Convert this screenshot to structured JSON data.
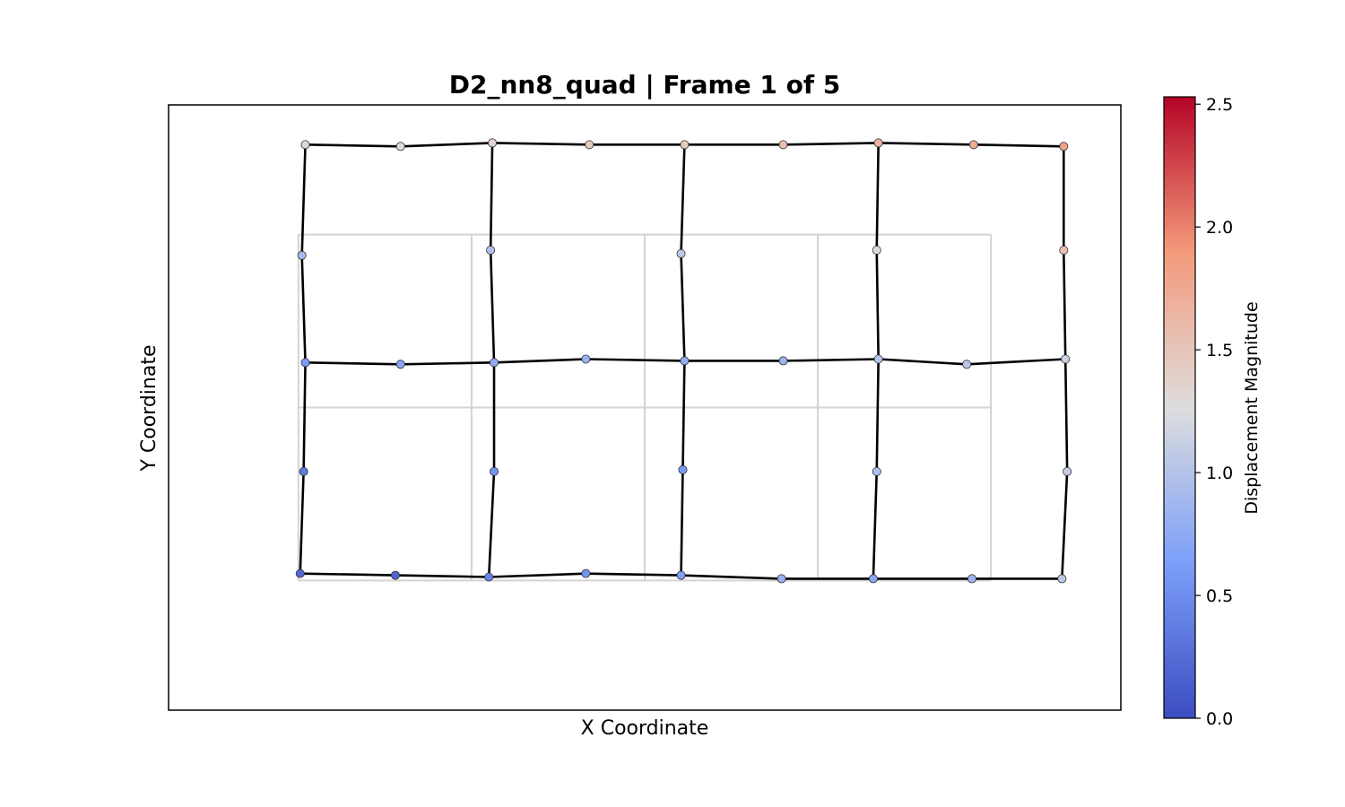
{
  "chart_data": {
    "type": "scatter",
    "title": "D2_nn8_quad  |  Frame 1 of 5",
    "xlabel": "X Coordinate",
    "ylabel": "Y Coordinate",
    "xlim": [
      -0.75,
      4.75
    ],
    "ylim": [
      -0.75,
      2.75
    ],
    "grid": false,
    "undeformed_mesh": {
      "color": "#d3d3d3",
      "segments": [
        [
          [
            0,
            0
          ],
          [
            4,
            0
          ]
        ],
        [
          [
            0,
            1
          ],
          [
            4,
            1
          ]
        ],
        [
          [
            0,
            2
          ],
          [
            4,
            2
          ]
        ],
        [
          [
            0,
            0
          ],
          [
            0,
            2
          ]
        ],
        [
          [
            1,
            0
          ],
          [
            1,
            2
          ]
        ],
        [
          [
            2,
            0
          ],
          [
            2,
            2
          ]
        ],
        [
          [
            3,
            0
          ],
          [
            3,
            2
          ]
        ],
        [
          [
            4,
            0
          ],
          [
            4,
            2
          ]
        ]
      ]
    },
    "nodes": [
      {
        "x": 0.01,
        "y": 0.04,
        "d": 0.22
      },
      {
        "x": 0.56,
        "y": 0.03,
        "d": 0.18
      },
      {
        "x": 1.1,
        "y": 0.02,
        "d": 0.42
      },
      {
        "x": 1.66,
        "y": 0.04,
        "d": 0.55
      },
      {
        "x": 2.21,
        "y": 0.03,
        "d": 0.65
      },
      {
        "x": 2.79,
        "y": 0.01,
        "d": 0.82
      },
      {
        "x": 3.32,
        "y": 0.01,
        "d": 0.7
      },
      {
        "x": 3.89,
        "y": 0.01,
        "d": 0.85
      },
      {
        "x": 4.41,
        "y": 0.01,
        "d": 1.05
      },
      {
        "x": 0.03,
        "y": 0.63,
        "d": 0.35
      },
      {
        "x": 1.13,
        "y": 0.63,
        "d": 0.55
      },
      {
        "x": 2.22,
        "y": 0.64,
        "d": 0.6
      },
      {
        "x": 3.34,
        "y": 0.63,
        "d": 0.95
      },
      {
        "x": 4.44,
        "y": 0.63,
        "d": 1.1
      },
      {
        "x": 0.04,
        "y": 1.26,
        "d": 0.6
      },
      {
        "x": 0.59,
        "y": 1.25,
        "d": 0.7
      },
      {
        "x": 1.13,
        "y": 1.26,
        "d": 0.75
      },
      {
        "x": 1.66,
        "y": 1.28,
        "d": 0.82
      },
      {
        "x": 2.23,
        "y": 1.27,
        "d": 0.78
      },
      {
        "x": 2.8,
        "y": 1.27,
        "d": 0.85
      },
      {
        "x": 3.35,
        "y": 1.28,
        "d": 1.0
      },
      {
        "x": 3.86,
        "y": 1.25,
        "d": 1.05
      },
      {
        "x": 4.43,
        "y": 1.28,
        "d": 1.15
      },
      {
        "x": 0.02,
        "y": 1.88,
        "d": 0.9
      },
      {
        "x": 1.11,
        "y": 1.91,
        "d": 0.98
      },
      {
        "x": 2.21,
        "y": 1.89,
        "d": 1.05
      },
      {
        "x": 3.34,
        "y": 1.91,
        "d": 1.25
      },
      {
        "x": 4.42,
        "y": 1.91,
        "d": 1.55
      },
      {
        "x": 0.04,
        "y": 2.52,
        "d": 1.2
      },
      {
        "x": 0.59,
        "y": 2.51,
        "d": 1.25
      },
      {
        "x": 1.12,
        "y": 2.53,
        "d": 1.35
      },
      {
        "x": 1.68,
        "y": 2.52,
        "d": 1.45
      },
      {
        "x": 2.23,
        "y": 2.52,
        "d": 1.45
      },
      {
        "x": 2.8,
        "y": 2.52,
        "d": 1.55
      },
      {
        "x": 3.35,
        "y": 2.53,
        "d": 1.65
      },
      {
        "x": 3.9,
        "y": 2.52,
        "d": 1.75
      },
      {
        "x": 4.42,
        "y": 2.51,
        "d": 1.8
      }
    ],
    "deformed_edges": [
      [
        0,
        1
      ],
      [
        1,
        2
      ],
      [
        2,
        3
      ],
      [
        3,
        4
      ],
      [
        4,
        5
      ],
      [
        5,
        6
      ],
      [
        6,
        7
      ],
      [
        7,
        8
      ],
      [
        14,
        15
      ],
      [
        15,
        16
      ],
      [
        16,
        17
      ],
      [
        17,
        18
      ],
      [
        18,
        19
      ],
      [
        19,
        20
      ],
      [
        20,
        21
      ],
      [
        21,
        22
      ],
      [
        28,
        29
      ],
      [
        29,
        30
      ],
      [
        30,
        31
      ],
      [
        31,
        32
      ],
      [
        32,
        33
      ],
      [
        33,
        34
      ],
      [
        34,
        35
      ],
      [
        35,
        36
      ],
      [
        0,
        9
      ],
      [
        9,
        14
      ],
      [
        14,
        23
      ],
      [
        23,
        28
      ],
      [
        2,
        10
      ],
      [
        10,
        16
      ],
      [
        16,
        24
      ],
      [
        24,
        30
      ],
      [
        4,
        11
      ],
      [
        11,
        18
      ],
      [
        18,
        25
      ],
      [
        25,
        32
      ],
      [
        6,
        12
      ],
      [
        12,
        20
      ],
      [
        20,
        26
      ],
      [
        26,
        34
      ],
      [
        8,
        13
      ],
      [
        13,
        22
      ],
      [
        22,
        27
      ],
      [
        27,
        36
      ]
    ],
    "colorbar": {
      "label": "Displacement Magnitude",
      "colormap": "coolwarm",
      "range": [
        0.0,
        2.53
      ],
      "ticks": [
        "0.0",
        "0.5",
        "1.0",
        "1.5",
        "2.0",
        "2.5"
      ],
      "tick_values": [
        0.0,
        0.5,
        1.0,
        1.5,
        2.0,
        2.5
      ]
    }
  }
}
